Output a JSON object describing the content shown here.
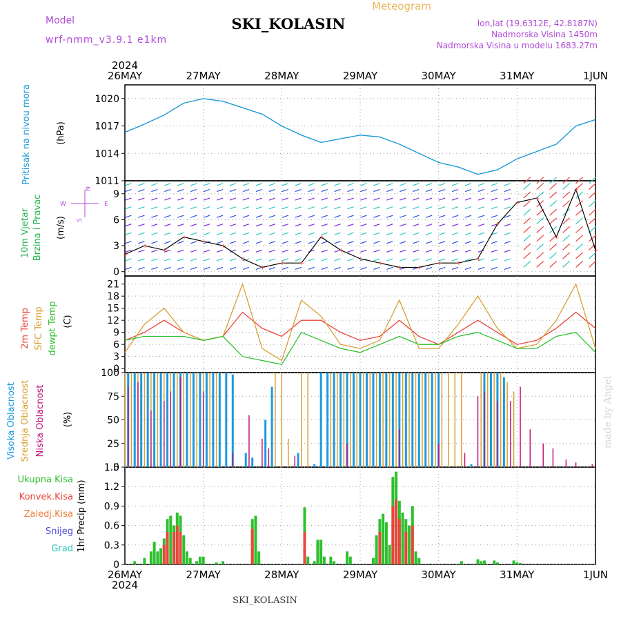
{
  "header": {
    "model_label": "Model",
    "model_name": "wrf-nmm_v3.9.1 e1km",
    "station": "SKI_KOLASIN",
    "meteogram_label": "Meteogram",
    "lonlat": "lon,lat (19.6312E, 42.8187N)",
    "elevation": "Nadmorska Visina 1450m",
    "model_elevation": "Nadmorska Visina u modelu 1683.27m",
    "year": "2024",
    "footer_station": "SKI_KOLASIN",
    "watermark": "made by Angel"
  },
  "colors": {
    "pressure": "#1a9ad6",
    "wind": "#22b24c",
    "temp2m": "#e8463c",
    "sfc": "#d7a032",
    "dewpt": "#2ec02e",
    "high_cloud": "#1b9ae0",
    "mid_cloud": "#d7a032",
    "low_cloud": "#c0157a",
    "precip_total": "#2ec02e",
    "precip_conv": "#e8463c",
    "wind_purple": "#7a2ad8",
    "wind_blue": "#2b4ee8",
    "wind_cyan": "#2ac8c0",
    "wind_red": "#e83c3c"
  },
  "chart_data": [
    {
      "type": "line",
      "panel": "pressure",
      "ylabel": "Pritisak na nivou mora",
      "unit": "(hPa)",
      "x_ticks": [
        "26MAY",
        "27MAY",
        "28MAY",
        "29MAY",
        "30MAY",
        "31MAY",
        "1JUN"
      ],
      "y_ticks": [
        1011,
        1014,
        1017,
        1020
      ],
      "ylim": [
        1011,
        1021.5
      ],
      "x_hours": [
        0,
        6,
        12,
        18,
        24,
        30,
        36,
        42,
        48,
        54,
        60,
        66,
        72,
        78,
        84,
        90,
        96,
        102,
        108,
        114,
        120,
        126,
        132,
        138,
        144
      ],
      "values": [
        1016.3,
        1017.2,
        1018.2,
        1019.5,
        1020.0,
        1019.7,
        1019.0,
        1018.3,
        1017.0,
        1016.0,
        1015.2,
        1015.6,
        1016.0,
        1015.8,
        1015.0,
        1014.0,
        1013.0,
        1012.5,
        1011.7,
        1012.2,
        1013.4,
        1014.2,
        1015.0,
        1017.0,
        1017.7
      ],
      "grid": true
    },
    {
      "type": "line",
      "panel": "wind",
      "ylabel": "10m Vjetar Brzina i Pravac",
      "unit": "(m/s)",
      "compass": [
        "N",
        "S",
        "W",
        "E"
      ],
      "y_ticks": [
        0,
        3,
        6,
        9
      ],
      "ylim": [
        -0.5,
        10.5
      ],
      "x_hours": [
        0,
        6,
        12,
        18,
        24,
        30,
        36,
        42,
        48,
        54,
        60,
        66,
        72,
        78,
        84,
        90,
        96,
        102,
        108,
        114,
        120,
        126,
        132,
        138,
        144
      ],
      "values": [
        2.0,
        3.0,
        2.5,
        4.0,
        3.5,
        3.0,
        1.5,
        0.5,
        1.0,
        1.0,
        4.0,
        2.5,
        1.5,
        1.0,
        0.5,
        0.5,
        1.0,
        1.0,
        1.5,
        5.5,
        8.0,
        8.5,
        4.0,
        9.5,
        2.5
      ],
      "grid": true
    },
    {
      "type": "line",
      "panel": "temperature",
      "ylabels": [
        "2m Temp",
        "SFC Temp",
        "dewpt Temp"
      ],
      "unit": "(C)",
      "y_ticks": [
        0,
        3,
        6,
        9,
        12,
        15,
        18,
        21
      ],
      "ylim": [
        -1,
        23
      ],
      "x_hours": [
        0,
        6,
        12,
        18,
        24,
        30,
        36,
        42,
        48,
        54,
        60,
        66,
        72,
        78,
        84,
        90,
        96,
        102,
        108,
        114,
        120,
        126,
        132,
        138,
        144
      ],
      "series": [
        {
          "name": "2m Temp",
          "values": [
            7,
            9,
            12,
            9,
            7,
            8,
            14,
            10,
            8,
            12,
            12,
            9,
            7,
            8,
            12,
            8,
            6,
            9,
            12,
            9,
            6,
            7,
            10,
            14,
            10
          ]
        },
        {
          "name": "SFC Temp",
          "values": [
            4,
            11,
            15,
            9,
            7,
            8,
            21,
            5,
            2,
            17,
            13,
            6,
            5,
            7,
            17,
            5,
            5,
            11,
            18,
            10,
            5,
            6,
            12,
            21,
            5
          ]
        },
        {
          "name": "dewpt Temp",
          "values": [
            7,
            8,
            8,
            8,
            7,
            8,
            3,
            2,
            1,
            9,
            7,
            5,
            4,
            6,
            8,
            6,
            6,
            8,
            9,
            7,
            5,
            5,
            8,
            9,
            4
          ]
        }
      ],
      "grid": true
    },
    {
      "type": "bar",
      "panel": "cloud",
      "ylabels": [
        "Visoka Oblacnost",
        "Srednja Oblacnost",
        "Niska Oblacnost"
      ],
      "unit": "(%)",
      "y_ticks": [
        0,
        25,
        50,
        75,
        100
      ],
      "ylim": [
        0,
        100
      ],
      "series": [
        {
          "name": "Visoka Oblacnost",
          "bars": [
            [
              1,
              100
            ],
            [
              3,
              100
            ],
            [
              5,
              100
            ],
            [
              7,
              100
            ],
            [
              9,
              100
            ],
            [
              11,
              100
            ],
            [
              13,
              100
            ],
            [
              15,
              100
            ],
            [
              17,
              100
            ],
            [
              19,
              100
            ],
            [
              21,
              100
            ],
            [
              23,
              100
            ],
            [
              25,
              100
            ],
            [
              27,
              100
            ],
            [
              29,
              100
            ],
            [
              31,
              100
            ],
            [
              33,
              98
            ],
            [
              37,
              15
            ],
            [
              39,
              10
            ],
            [
              43,
              50
            ],
            [
              45,
              85
            ],
            [
              53,
              15
            ],
            [
              58,
              3
            ],
            [
              60,
              100
            ],
            [
              62,
              100
            ],
            [
              64,
              100
            ],
            [
              66,
              100
            ],
            [
              68,
              100
            ],
            [
              70,
              100
            ],
            [
              72,
              100
            ],
            [
              74,
              100
            ],
            [
              76,
              100
            ],
            [
              78,
              100
            ],
            [
              80,
              100
            ],
            [
              82,
              100
            ],
            [
              84,
              100
            ],
            [
              86,
              100
            ],
            [
              88,
              100
            ],
            [
              90,
              100
            ],
            [
              92,
              100
            ],
            [
              94,
              100
            ],
            [
              96,
              100
            ],
            [
              106,
              3
            ],
            [
              110,
              100
            ],
            [
              112,
              100
            ],
            [
              114,
              100
            ],
            [
              116,
              95
            ]
          ]
        },
        {
          "name": "Srednja Oblacnost",
          "bars": [
            [
              0,
              100
            ],
            [
              2,
              100
            ],
            [
              4,
              100
            ],
            [
              6,
              100
            ],
            [
              8,
              100
            ],
            [
              10,
              100
            ],
            [
              12,
              100
            ],
            [
              14,
              100
            ],
            [
              16,
              100
            ],
            [
              18,
              100
            ],
            [
              20,
              100
            ],
            [
              22,
              100
            ],
            [
              24,
              100
            ],
            [
              26,
              100
            ],
            [
              28,
              100
            ],
            [
              46,
              100
            ],
            [
              48,
              100
            ],
            [
              50,
              30
            ],
            [
              54,
              100
            ],
            [
              56,
              100
            ],
            [
              63,
              100
            ],
            [
              65,
              100
            ],
            [
              67,
              100
            ],
            [
              69,
              100
            ],
            [
              71,
              100
            ],
            [
              73,
              100
            ],
            [
              75,
              100
            ],
            [
              77,
              100
            ],
            [
              79,
              100
            ],
            [
              81,
              100
            ],
            [
              83,
              100
            ],
            [
              85,
              100
            ],
            [
              87,
              100
            ],
            [
              89,
              100
            ],
            [
              91,
              100
            ],
            [
              93,
              100
            ],
            [
              95,
              100
            ],
            [
              97,
              100
            ],
            [
              99,
              100
            ],
            [
              101,
              100
            ],
            [
              103,
              100
            ],
            [
              109,
              100
            ],
            [
              111,
              100
            ],
            [
              113,
              100
            ],
            [
              115,
              100
            ],
            [
              117,
              90
            ],
            [
              119,
              80
            ]
          ]
        },
        {
          "name": "Niska Oblacnost",
          "bars": [
            [
              1,
              85
            ],
            [
              4,
              90
            ],
            [
              8,
              60
            ],
            [
              12,
              70
            ],
            [
              14,
              80
            ],
            [
              17,
              95
            ],
            [
              24,
              80
            ],
            [
              33,
              15
            ],
            [
              38,
              55
            ],
            [
              42,
              30
            ],
            [
              44,
              20
            ],
            [
              52,
              12
            ],
            [
              68,
              25
            ],
            [
              84,
              40
            ],
            [
              96,
              25
            ],
            [
              104,
              15
            ],
            [
              108,
              75
            ],
            [
              110,
              80
            ],
            [
              114,
              70
            ],
            [
              118,
              70
            ],
            [
              121,
              85
            ],
            [
              124,
              40
            ],
            [
              128,
              25
            ],
            [
              131,
              20
            ],
            [
              135,
              8
            ],
            [
              138,
              5
            ],
            [
              143,
              3
            ]
          ]
        }
      ],
      "grid": true
    },
    {
      "type": "bar",
      "panel": "precipitation",
      "ylabels": [
        "Ukupna Kisa",
        "Konvek.Kisa",
        "Zaledj.Kisa",
        "Snijeg",
        "Grad"
      ],
      "unit": "1hr Precip (mm)",
      "y_ticks": [
        0,
        0.3,
        0.6,
        0.9,
        1.2,
        1.5
      ],
      "ylim": [
        0,
        1.5
      ],
      "x_ticks": [
        "26MAY",
        "27MAY",
        "28MAY",
        "29MAY",
        "30MAY",
        "31MAY",
        "1JUN"
      ],
      "series": [
        {
          "name": "Ukupna Kisa",
          "bars": [
            [
              3,
              0.05
            ],
            [
              6,
              0.1
            ],
            [
              8,
              0.2
            ],
            [
              9,
              0.35
            ],
            [
              10,
              0.2
            ],
            [
              11,
              0.25
            ],
            [
              12,
              0.4
            ],
            [
              13,
              0.7
            ],
            [
              14,
              0.75
            ],
            [
              15,
              0.6
            ],
            [
              16,
              0.8
            ],
            [
              17,
              0.75
            ],
            [
              18,
              0.45
            ],
            [
              19,
              0.2
            ],
            [
              20,
              0.1
            ],
            [
              22,
              0.05
            ],
            [
              23,
              0.12
            ],
            [
              24,
              0.12
            ],
            [
              28,
              0.03
            ],
            [
              30,
              0.05
            ],
            [
              39,
              0.7
            ],
            [
              40,
              0.75
            ],
            [
              41,
              0.2
            ],
            [
              55,
              0.88
            ],
            [
              56,
              0.12
            ],
            [
              58,
              0.05
            ],
            [
              59,
              0.38
            ],
            [
              60,
              0.38
            ],
            [
              61,
              0.12
            ],
            [
              63,
              0.12
            ],
            [
              64,
              0.05
            ],
            [
              68,
              0.2
            ],
            [
              69,
              0.12
            ],
            [
              76,
              0.1
            ],
            [
              77,
              0.45
            ],
            [
              78,
              0.7
            ],
            [
              79,
              0.78
            ],
            [
              80,
              0.65
            ],
            [
              81,
              0.3
            ],
            [
              82,
              1.35
            ],
            [
              83,
              1.43
            ],
            [
              84,
              0.98
            ],
            [
              85,
              0.8
            ],
            [
              86,
              0.7
            ],
            [
              87,
              0.6
            ],
            [
              88,
              0.9
            ],
            [
              89,
              0.2
            ],
            [
              90,
              0.1
            ],
            [
              103,
              0.05
            ],
            [
              108,
              0.08
            ],
            [
              109,
              0.05
            ],
            [
              110,
              0.06
            ],
            [
              113,
              0.06
            ],
            [
              114,
              0.03
            ],
            [
              119,
              0.06
            ],
            [
              120,
              0.03
            ],
            [
              121,
              0.02
            ]
          ]
        },
        {
          "name": "Konvek.Kisa",
          "bars": [
            [
              12,
              0.3
            ],
            [
              13,
              0.5
            ],
            [
              15,
              0.5
            ],
            [
              16,
              0.6
            ],
            [
              17,
              0.5
            ],
            [
              39,
              0.55
            ],
            [
              55,
              0.5
            ],
            [
              78,
              0.5
            ],
            [
              82,
              0.9
            ],
            [
              83,
              1.0
            ],
            [
              84,
              0.7
            ],
            [
              86,
              0.5
            ],
            [
              88,
              0.6
            ]
          ]
        }
      ],
      "grid": true
    }
  ]
}
